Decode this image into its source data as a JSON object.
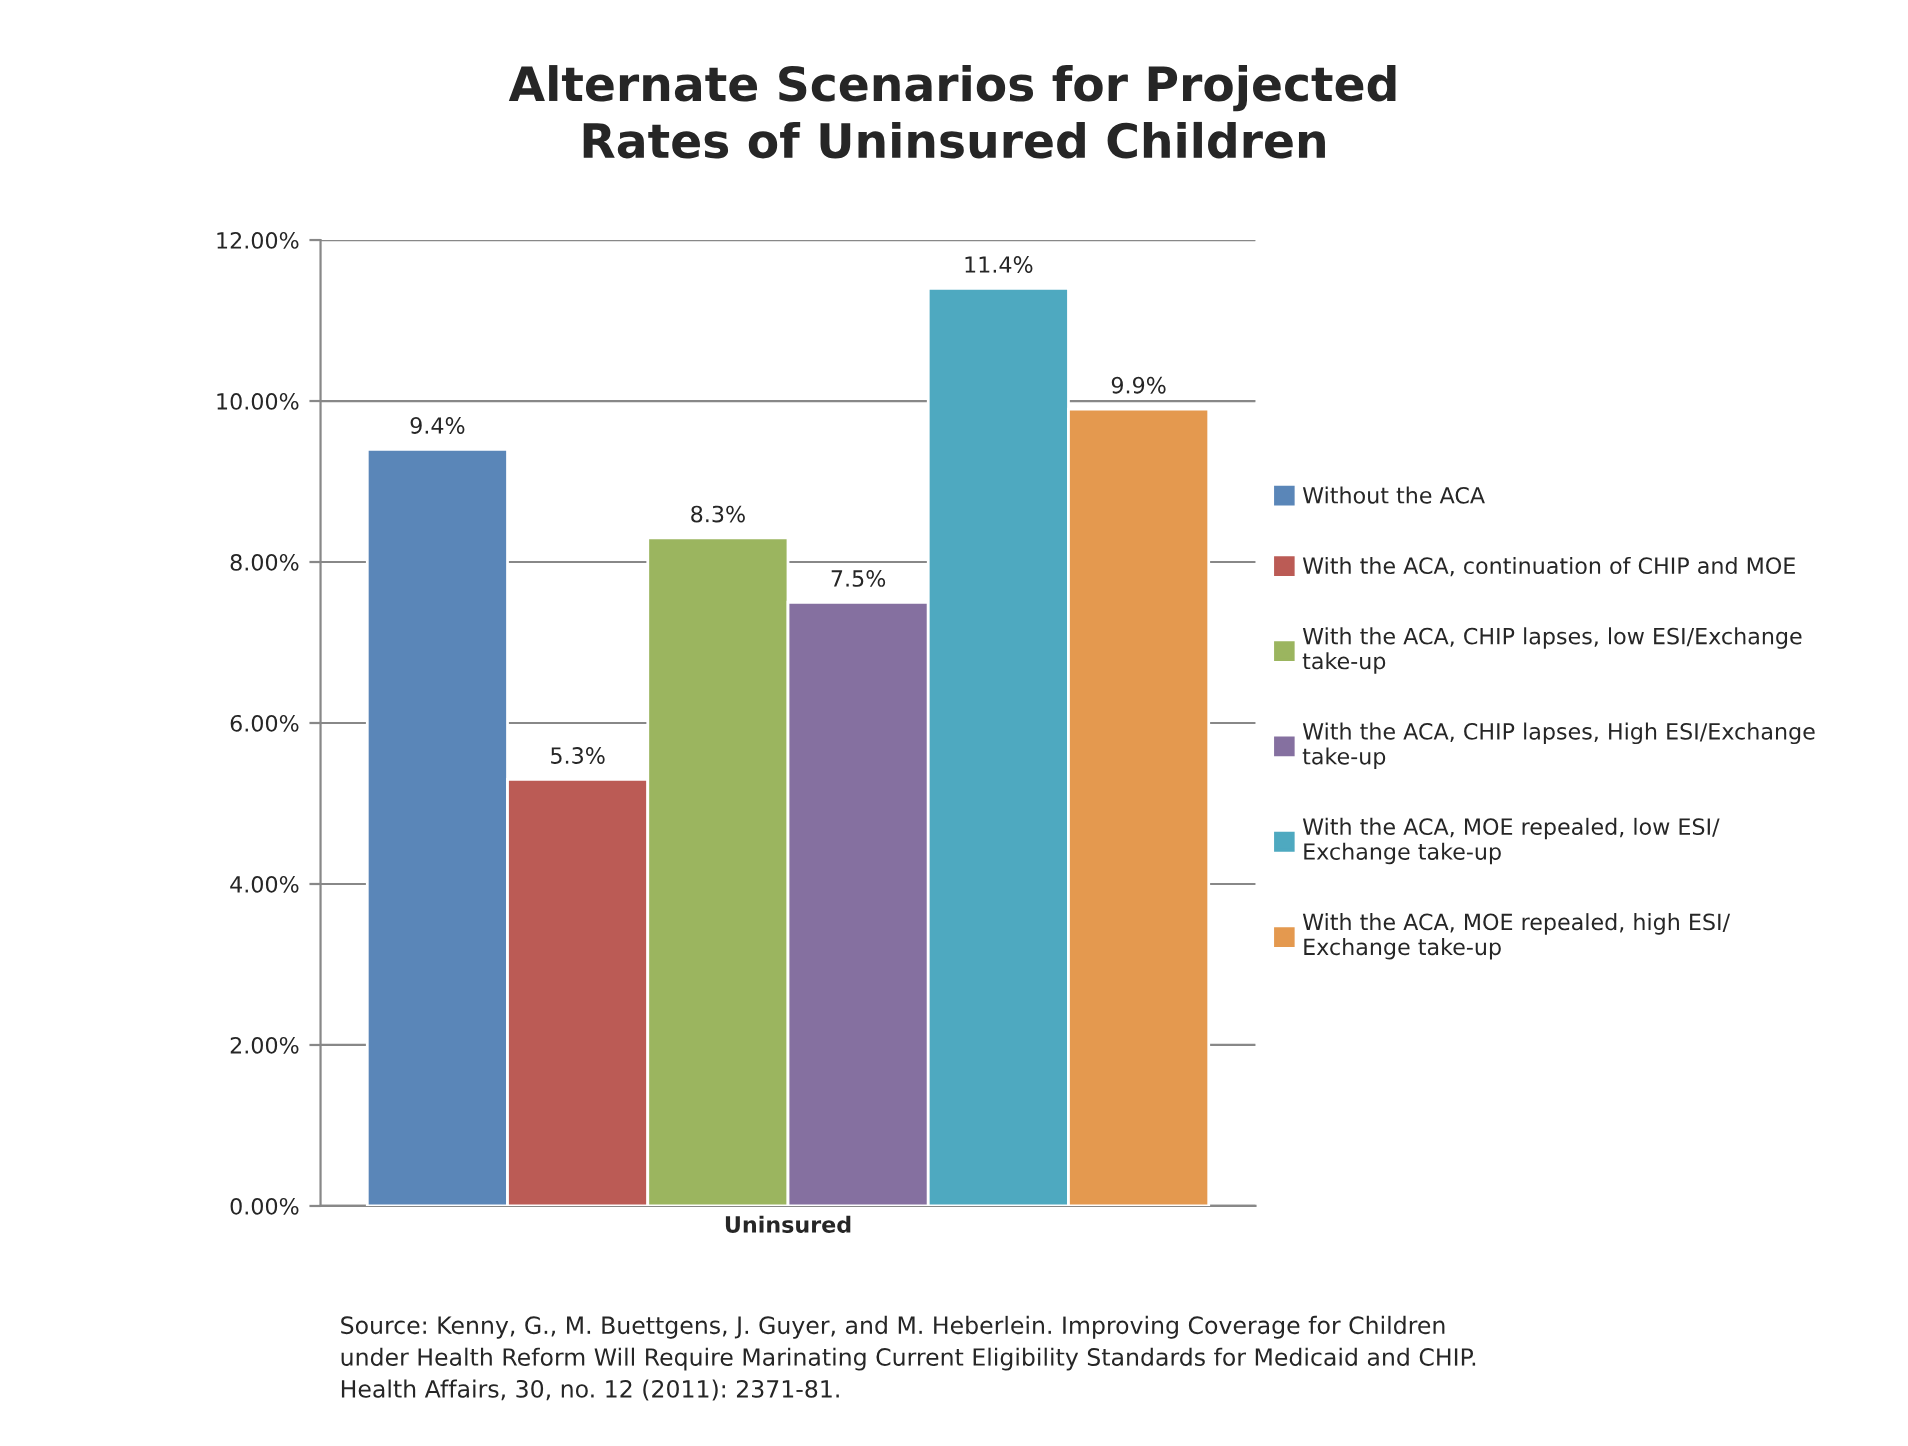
{
  "chart_data": {
    "type": "bar",
    "title": "Alternate Scenarios for Projected\nRates of Uninsured Children",
    "categories": [
      "Uninsured"
    ],
    "series": [
      {
        "name": "Without the ACA",
        "color": "#5a86b8",
        "values": [
          9.4
        ],
        "value_labels": [
          "9.4%"
        ]
      },
      {
        "name": "With the ACA, continuation of CHIP and MOE",
        "color": "#bb5b55",
        "values": [
          5.3
        ],
        "value_labels": [
          "5.3%"
        ]
      },
      {
        "name": "With the ACA, CHIP lapses, low ESI/Exchange\ntake-up",
        "color": "#9bb55f",
        "values": [
          8.3
        ],
        "value_labels": [
          "8.3%"
        ]
      },
      {
        "name": "With the ACA, CHIP lapses, High ESI/Exchange\ntake-up",
        "color": "#8570a0",
        "values": [
          7.5
        ],
        "value_labels": [
          "7.5%"
        ]
      },
      {
        "name": "With the ACA, MOE repealed, low ESI/\nExchange take-up",
        "color": "#4ea9c0",
        "values": [
          11.4
        ],
        "value_labels": [
          "11.4%"
        ]
      },
      {
        "name": "With the ACA, MOE repealed, high ESI/\nExchange take-up",
        "color": "#e4994f",
        "values": [
          9.9
        ],
        "value_labels": [
          "9.9%"
        ]
      }
    ],
    "ylim": [
      0,
      12
    ],
    "yticks": [
      {
        "value": 0,
        "label": "0.00%"
      },
      {
        "value": 2,
        "label": "2.00%"
      },
      {
        "value": 4,
        "label": "4.00%"
      },
      {
        "value": 6,
        "label": "6.00%"
      },
      {
        "value": 8,
        "label": "8.00%"
      },
      {
        "value": 10,
        "label": "10.00%"
      },
      {
        "value": 12,
        "label": "12.00%"
      }
    ],
    "grid": "y",
    "legend": "right",
    "annotations": [
      "Source: Kenny, G., M. Buettgens, J. Guyer, and M. Heberlein. Improving Coverage for Children\nunder Health Reform Will Require Marinating Current Eligibility Standards for Medicaid and CHIP.\nHealth Affairs, 30, no. 12 (2011): 2371-81."
    ]
  }
}
